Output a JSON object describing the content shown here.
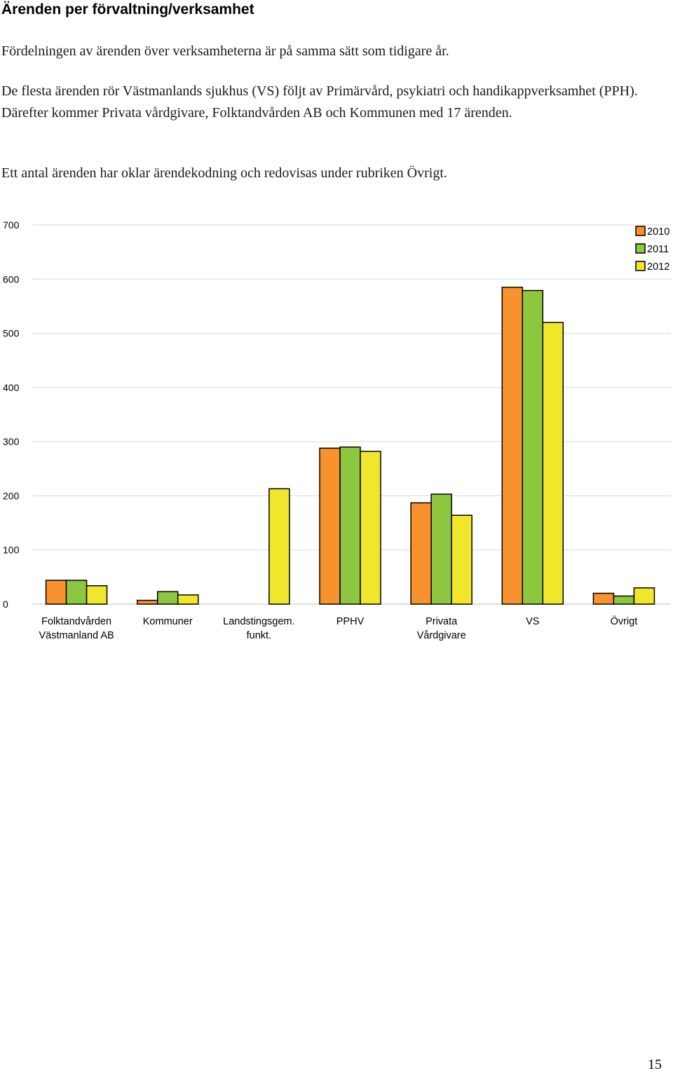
{
  "heading": "Ärenden per förvaltning/verksamhet",
  "paragraphs": [
    "Fördelningen av ärenden över verksamheterna är på samma sätt som tidigare år.",
    "De flesta ärenden rör Västmanlands sjukhus (VS) följt av Primärvård, psykiatri och handikapp­verksamhet (PPH). Därefter kommer Privata vårdgivare, Folktandvården AB och Kommunen med 17 ärenden.",
    "Ett antal ärenden har oklar ärendekodning och redovisas under rubriken Övrigt."
  ],
  "page_number": "15",
  "chart_data": {
    "type": "bar",
    "title": "",
    "xlabel": "",
    "ylabel": "",
    "ylim": [
      0,
      700
    ],
    "yticks": [
      0,
      100,
      200,
      300,
      400,
      500,
      600,
      700
    ],
    "grid": true,
    "legend_position": "top-right",
    "categories": [
      [
        "Folktandvården",
        "Västmanland AB"
      ],
      [
        "Kommuner"
      ],
      [
        "Landstingsgem.",
        "funkt."
      ],
      [
        "PPHV"
      ],
      [
        "Privata",
        "Vårdgivare"
      ],
      [
        "VS"
      ],
      [
        "Övrigt"
      ]
    ],
    "series": [
      {
        "name": "2010",
        "color": "#f7922e",
        "values": [
          44,
          7,
          0,
          288,
          187,
          585,
          20
        ]
      },
      {
        "name": "2011",
        "color": "#8dc63f",
        "values": [
          44,
          23,
          0,
          290,
          203,
          579,
          15
        ]
      },
      {
        "name": "2012",
        "color": "#f0e72c",
        "values": [
          34,
          17,
          213,
          282,
          164,
          520,
          30
        ]
      }
    ]
  }
}
